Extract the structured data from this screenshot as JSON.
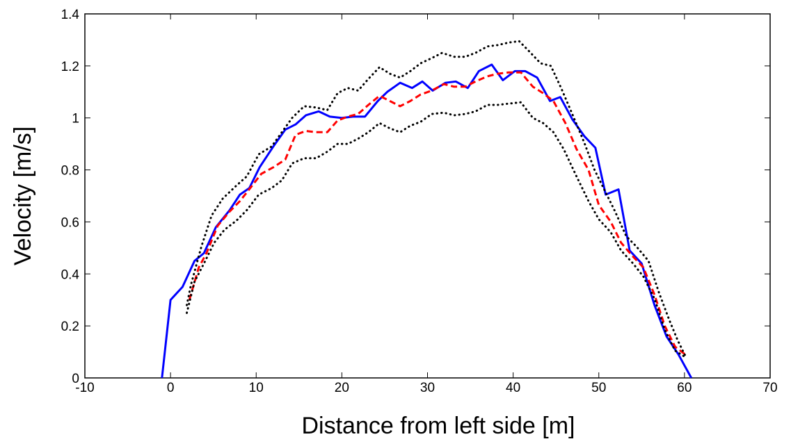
{
  "chart_data": {
    "type": "line",
    "xlabel": "Distance from left side [m]",
    "ylabel": "Velocity [m/s]",
    "xlim": [
      -10,
      70
    ],
    "xticks": [
      -10,
      0,
      10,
      20,
      30,
      40,
      50,
      60,
      70
    ],
    "ylim": [
      0,
      1.4
    ],
    "yticks": [
      0,
      0.2,
      0.4,
      0.6,
      0.8,
      1,
      1.2,
      1.4
    ],
    "series": [
      {
        "color": "#0000ff",
        "style": "solid",
        "x": [
          -1,
          0,
          1.4,
          2.8,
          3.9,
          5.3,
          6.9,
          8.1,
          9.2,
          10.4,
          12,
          13.4,
          14.6,
          15.8,
          17.3,
          18.6,
          20,
          21.3,
          22.7,
          24.2,
          25.3,
          26.8,
          28.2,
          29.4,
          30.6,
          32.1,
          33.3,
          34.7,
          36,
          37.5,
          38.8,
          40.2,
          41.4,
          42.8,
          44.3,
          45.5,
          46.9,
          48.3,
          49.6,
          50.8,
          52.3,
          53.6,
          55,
          56.5,
          57.9,
          59.3,
          60.8
        ],
        "values": [
          0,
          0.3,
          0.35,
          0.45,
          0.48,
          0.58,
          0.645,
          0.705,
          0.73,
          0.81,
          0.89,
          0.955,
          0.975,
          1.01,
          1.025,
          1.005,
          1.0,
          1.005,
          1.005,
          1.065,
          1.1,
          1.135,
          1.115,
          1.14,
          1.105,
          1.135,
          1.14,
          1.115,
          1.18,
          1.205,
          1.145,
          1.18,
          1.18,
          1.155,
          1.065,
          1.08,
          0.995,
          0.93,
          0.885,
          0.705,
          0.725,
          0.49,
          0.44,
          0.28,
          0.16,
          0.09,
          0
        ]
      },
      {
        "color": "#ff0000",
        "style": "dashed",
        "x": [
          2.2,
          3.3,
          4.2,
          5.5,
          6.9,
          8.1,
          9.3,
          10.6,
          12,
          13.4,
          14.6,
          15.8,
          17,
          18.3,
          19.5,
          20.7,
          21.9,
          23.1,
          24.4,
          25.6,
          26.8,
          28,
          29.2,
          30.5,
          31.9,
          33.1,
          34.4,
          35.6,
          37,
          38.2,
          39.5,
          40.9,
          42.3,
          43.5,
          44.7,
          46.1,
          47.4,
          48.8,
          50,
          51.4,
          52.6,
          53.9,
          55.2,
          56.5,
          57.7,
          58.9,
          60.1
        ],
        "values": [
          0.3,
          0.425,
          0.48,
          0.585,
          0.64,
          0.68,
          0.73,
          0.785,
          0.81,
          0.84,
          0.935,
          0.95,
          0.945,
          0.945,
          0.99,
          1.005,
          1.015,
          1.05,
          1.085,
          1.065,
          1.045,
          1.065,
          1.09,
          1.105,
          1.13,
          1.12,
          1.12,
          1.14,
          1.16,
          1.17,
          1.175,
          1.175,
          1.12,
          1.095,
          1.065,
          0.98,
          0.88,
          0.8,
          0.665,
          0.6,
          0.52,
          0.47,
          0.425,
          0.32,
          0.2,
          0.12,
          0.09
        ]
      },
      {
        "color": "#000000",
        "style": "dotted",
        "x": [
          1.9,
          2.4,
          3.6,
          4.8,
          6.1,
          7.7,
          8.9,
          10.3,
          11.8,
          13,
          14.2,
          15.6,
          17,
          18.3,
          19.5,
          20.7,
          21.9,
          23.1,
          24.4,
          25.6,
          26.8,
          28,
          29.2,
          30.5,
          31.7,
          33.1,
          34.4,
          35.6,
          37,
          38.2,
          39.5,
          40.7,
          41.9,
          43.2,
          44.4,
          45.6,
          46.9,
          48.3,
          49.5,
          50.7,
          51.9,
          53.2,
          54.4,
          55.8,
          57,
          58.2,
          59.2,
          60.1
        ],
        "values": [
          0.28,
          0.36,
          0.505,
          0.625,
          0.69,
          0.74,
          0.775,
          0.86,
          0.89,
          0.945,
          1.0,
          1.045,
          1.04,
          1.03,
          1.095,
          1.115,
          1.105,
          1.15,
          1.195,
          1.17,
          1.155,
          1.18,
          1.21,
          1.23,
          1.25,
          1.235,
          1.235,
          1.25,
          1.275,
          1.28,
          1.29,
          1.295,
          1.255,
          1.21,
          1.2,
          1.115,
          1.015,
          0.905,
          0.8,
          0.72,
          0.64,
          0.545,
          0.505,
          0.45,
          0.33,
          0.225,
          0.145,
          0.085
        ]
      },
      {
        "color": "#000000",
        "style": "dotted",
        "x": [
          1.9,
          2.8,
          3.9,
          5.1,
          6.3,
          7.7,
          8.9,
          10.3,
          11.8,
          13,
          14.2,
          15.6,
          17,
          18.3,
          19.5,
          20.7,
          21.9,
          23.1,
          24.4,
          25.6,
          26.8,
          28,
          29.2,
          30.5,
          31.9,
          33.1,
          34.4,
          35.6,
          37,
          38.2,
          39.5,
          40.9,
          42.3,
          43.5,
          44.7,
          45.9,
          47.4,
          48.8,
          50,
          51.4,
          52.6,
          54,
          55.2,
          56.5,
          57.7,
          58.9,
          60.1
        ],
        "values": [
          0.25,
          0.37,
          0.44,
          0.52,
          0.57,
          0.605,
          0.645,
          0.705,
          0.73,
          0.76,
          0.825,
          0.845,
          0.845,
          0.87,
          0.9,
          0.9,
          0.92,
          0.945,
          0.98,
          0.96,
          0.945,
          0.97,
          0.985,
          1.015,
          1.02,
          1.01,
          1.015,
          1.025,
          1.05,
          1.05,
          1.055,
          1.06,
          1.0,
          0.98,
          0.945,
          0.88,
          0.775,
          0.68,
          0.61,
          0.56,
          0.49,
          0.44,
          0.39,
          0.305,
          0.185,
          0.105,
          0.08
        ]
      }
    ]
  }
}
